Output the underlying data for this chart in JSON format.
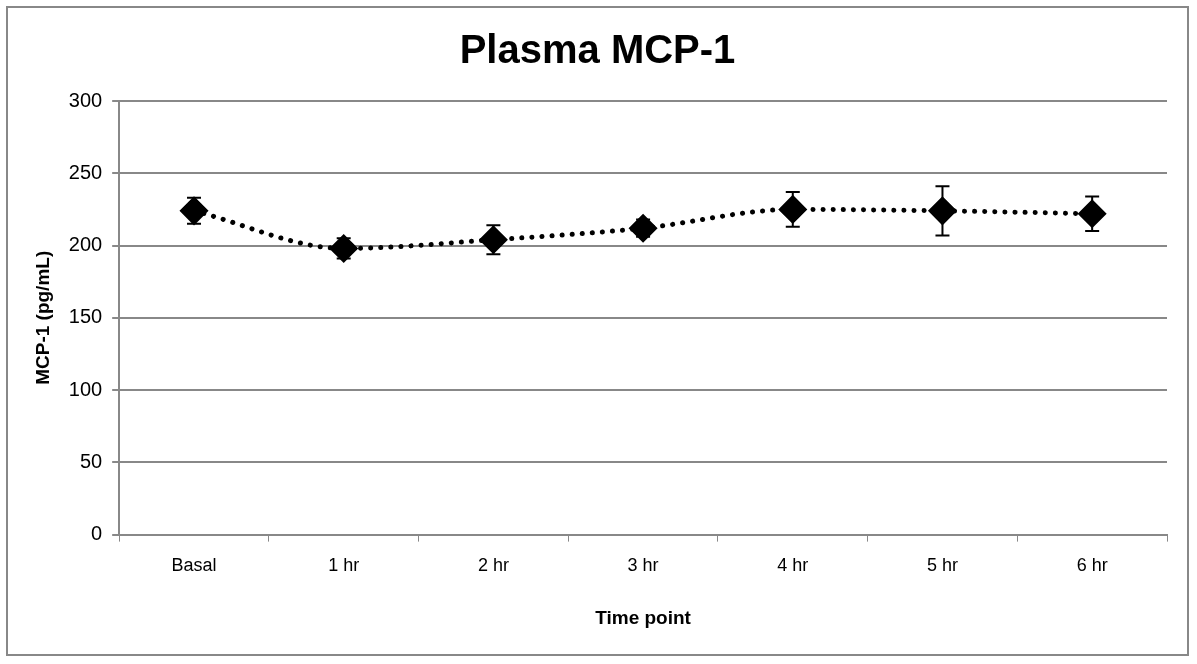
{
  "chart_data": {
    "type": "line",
    "title": "Plasma MCP-1",
    "xlabel": "Time point",
    "ylabel": "MCP-1 (pg/mL)",
    "categories": [
      "Basal",
      "1 hr",
      "2 hr",
      "3 hr",
      "4 hr",
      "5 hr",
      "6 hr"
    ],
    "series": [
      {
        "color": "#000000",
        "values": [
          224,
          198,
          204,
          212,
          225,
          224,
          222
        ],
        "errors": [
          9,
          7,
          10,
          6,
          12,
          17,
          12
        ]
      }
    ],
    "ylim": [
      0,
      300
    ],
    "yticks": [
      0,
      50,
      100,
      150,
      200,
      250,
      300
    ],
    "grid": "y",
    "legend": false,
    "marker": "diamond",
    "line_style": "dotted"
  }
}
